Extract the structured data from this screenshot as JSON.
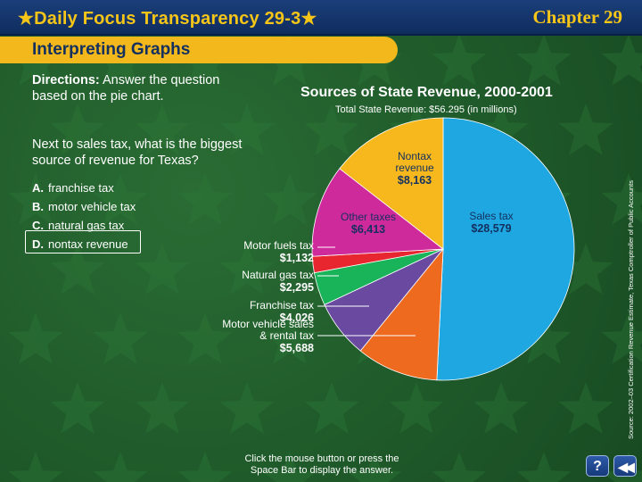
{
  "header": {
    "title": "Daily Focus Transparency 29-3",
    "chapter": "Chapter 29"
  },
  "section": {
    "title": "Interpreting Graphs"
  },
  "directions": {
    "label": "Directions:",
    "text": "Answer the question based on the pie chart."
  },
  "question": "Next to sales tax, what is the biggest source of revenue for Texas?",
  "answers": [
    {
      "letter": "A.",
      "text": "franchise tax"
    },
    {
      "letter": "B.",
      "text": "motor vehicle tax"
    },
    {
      "letter": "C.",
      "text": "natural gas tax"
    },
    {
      "letter": "D.",
      "text": "nontax revenue"
    }
  ],
  "highlighted_answer": 3,
  "source": "Source: 2002–03 Certification Revenue Estimate, Texas Comptroller of Public Accounts",
  "footer": {
    "line1": "Click the mouse button or press the",
    "line2": "Space Bar to display the answer."
  },
  "buttons": {
    "help": "?",
    "next": "◀◀"
  },
  "colors": {
    "background": "#1f5a2a",
    "header": "#0f2c5e",
    "accent": "#f2b81c",
    "title_text": "#f5c518"
  },
  "chart_data": {
    "type": "pie",
    "title": "Sources of State Revenue, 2000-2001",
    "subtitle": "Total State Revenue: $56.295 (in millions)",
    "slices": [
      {
        "name": "Sales tax",
        "label_lines": [
          "Sales tax"
        ],
        "value_label": "$28,579",
        "value": 28579,
        "color": "#1ea7e1",
        "label_inside": true
      },
      {
        "name": "Motor vehicle sales & rental tax",
        "label_lines": [
          "Motor vehicle sales",
          "& rental tax"
        ],
        "value_label": "$5,688",
        "value": 5688,
        "color": "#ee6a1f",
        "label_inside": false
      },
      {
        "name": "Franchise tax",
        "label_lines": [
          "Franchise tax"
        ],
        "value_label": "$4,026",
        "value": 4026,
        "color": "#6a4aa0",
        "label_inside": false
      },
      {
        "name": "Natural gas tax",
        "label_lines": [
          "Natural gas tax"
        ],
        "value_label": "$2,295",
        "value": 2295,
        "color": "#19b35a",
        "label_inside": false
      },
      {
        "name": "Motor fuels tax",
        "label_lines": [
          "Motor fuels tax"
        ],
        "value_label": "$1,132",
        "value": 1132,
        "color": "#e8262f",
        "label_inside": false
      },
      {
        "name": "Other taxes",
        "label_lines": [
          "Other taxes"
        ],
        "value_label": "$6,413",
        "value": 6413,
        "color": "#cf2a9c",
        "label_inside": true
      },
      {
        "name": "Nontax revenue",
        "label_lines": [
          "Nontax",
          "revenue"
        ],
        "value_label": "$8,163",
        "value": 8163,
        "color": "#f7b81e",
        "label_inside": true
      }
    ]
  }
}
